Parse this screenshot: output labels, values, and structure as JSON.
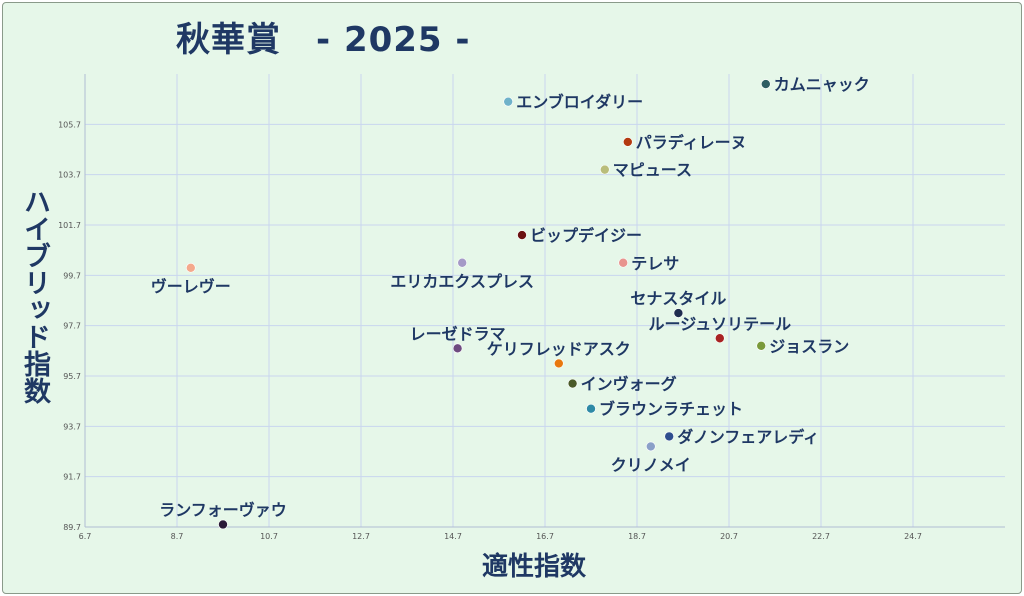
{
  "chart_data": {
    "type": "scatter",
    "title": "秋華賞　- 2025 -",
    "xlabel": "適性指数",
    "ylabel": "ハイブリッド指数",
    "xlim": [
      6.7,
      26.7
    ],
    "ylim": [
      89.7,
      107.7
    ],
    "x_ticks": [
      "6.7",
      "8.7",
      "10.7",
      "12.7",
      "14.7",
      "16.7",
      "18.7",
      "20.7",
      "22.7",
      "24.7"
    ],
    "y_ticks": [
      "89.7",
      "91.7",
      "93.7",
      "95.7",
      "97.7",
      "99.7",
      "101.7",
      "103.7",
      "105.7"
    ],
    "grid": true,
    "points": [
      {
        "label": "カムニャック",
        "x": 21.5,
        "y": 107.3,
        "color": "#2e5e63",
        "label_side": "right"
      },
      {
        "label": "エンブロイダリー",
        "x": 15.9,
        "y": 106.6,
        "color": "#6fb2c9",
        "label_side": "right"
      },
      {
        "label": "パラディレーヌ",
        "x": 18.5,
        "y": 105.0,
        "color": "#b33a10",
        "label_side": "right"
      },
      {
        "label": "マピュース",
        "x": 18.0,
        "y": 103.9,
        "color": "#b9bd7a",
        "label_side": "right"
      },
      {
        "label": "ビップデイジー",
        "x": 16.2,
        "y": 101.3,
        "color": "#6b1212",
        "label_side": "right"
      },
      {
        "label": "テレサ",
        "x": 18.4,
        "y": 100.2,
        "color": "#e8948e",
        "label_side": "right"
      },
      {
        "label": "エリカエクスプレス",
        "x": 14.9,
        "y": 100.2,
        "color": "#a59ac7",
        "label_side": "below"
      },
      {
        "label": "ヴーレヴー",
        "x": 9.0,
        "y": 100.0,
        "color": "#f4a98c",
        "label_side": "below"
      },
      {
        "label": "セナスタイル",
        "x": 19.6,
        "y": 98.2,
        "color": "#1f2d4f",
        "label_side": "above"
      },
      {
        "label": "ルージュソリテール",
        "x": 20.5,
        "y": 97.2,
        "color": "#a82222",
        "label_side": "above"
      },
      {
        "label": "ジョスラン",
        "x": 21.4,
        "y": 96.9,
        "color": "#7a9a3a",
        "label_side": "right"
      },
      {
        "label": "レーゼドラマ",
        "x": 14.8,
        "y": 96.8,
        "color": "#6e4a80",
        "label_side": "above"
      },
      {
        "label": "ケリフレッドアスク",
        "x": 17.0,
        "y": 96.2,
        "color": "#e8780e",
        "label_side": "above"
      },
      {
        "label": "インヴォーグ",
        "x": 17.3,
        "y": 95.4,
        "color": "#4a5a28",
        "label_side": "right"
      },
      {
        "label": "ブラウンラチェット",
        "x": 17.7,
        "y": 94.4,
        "color": "#2e8aa6",
        "label_side": "right"
      },
      {
        "label": "ダノンフェアレディ",
        "x": 19.4,
        "y": 93.3,
        "color": "#2e4e8e",
        "label_side": "right"
      },
      {
        "label": "クリノメイ",
        "x": 19.0,
        "y": 92.9,
        "color": "#8aa0c8",
        "label_side": "below"
      },
      {
        "label": "ランフォーヴァウ",
        "x": 9.7,
        "y": 89.8,
        "color": "#2a1a38",
        "label_side": "above"
      }
    ]
  }
}
